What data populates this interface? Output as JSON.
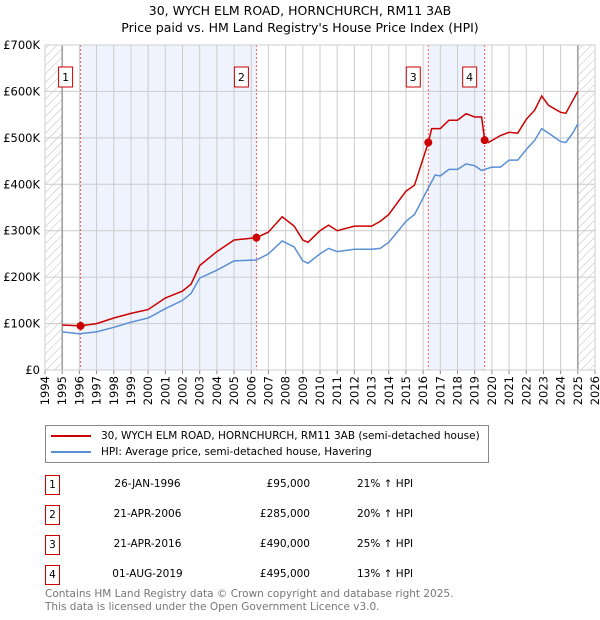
{
  "title": "30, WYCH ELM ROAD, HORNCHURCH, RM11 3AB",
  "subtitle": "Price paid vs. HM Land Registry's House Price Index (HPI)",
  "chart_data": {
    "type": "line",
    "xlim": [
      1994,
      2026
    ],
    "ylim": [
      0,
      700000
    ],
    "x_ticks": [
      "1994",
      "1995",
      "1996",
      "1997",
      "1998",
      "1999",
      "2000",
      "2001",
      "2002",
      "2003",
      "2004",
      "2005",
      "2006",
      "2007",
      "2008",
      "2009",
      "2010",
      "2011",
      "2012",
      "2013",
      "2014",
      "2015",
      "2016",
      "2017",
      "2018",
      "2019",
      "2020",
      "2021",
      "2022",
      "2023",
      "2024",
      "2025",
      "2026"
    ],
    "y_ticks": [
      {
        "v": 0,
        "label": "£0"
      },
      {
        "v": 100000,
        "label": "£100K"
      },
      {
        "v": 200000,
        "label": "£200K"
      },
      {
        "v": 300000,
        "label": "£300K"
      },
      {
        "v": 400000,
        "label": "£400K"
      },
      {
        "v": 500000,
        "label": "£500K"
      },
      {
        "v": 600000,
        "label": "£600K"
      },
      {
        "v": 700000,
        "label": "£700K"
      }
    ],
    "hatched_ranges": [
      [
        1994,
        1995
      ],
      [
        2025,
        2026
      ]
    ],
    "shaded_ranges": [
      [
        1996.07,
        2006.3
      ],
      [
        2016.3,
        2019.58
      ]
    ],
    "series": [
      {
        "name": "30, WYCH ELM ROAD, HORNCHURCH, RM11 3AB (semi-detached house)",
        "color": "#cc0000",
        "x": [
          1995,
          1996.07,
          1997,
          1998,
          1999,
          2000,
          2001,
          2002,
          2002.5,
          2003,
          2004,
          2005,
          2005.5,
          2006.3,
          2007,
          2007.8,
          2008.5,
          2009,
          2009.3,
          2010,
          2010.5,
          2011,
          2012,
          2013,
          2013.5,
          2014,
          2015,
          2015.5,
          2016.3,
          2016.5,
          2017,
          2017.5,
          2018,
          2018.5,
          2019,
          2019.4,
          2019.58,
          2019.8,
          2020.5,
          2021,
          2021.5,
          2022,
          2022.5,
          2022.9,
          2023.3,
          2024,
          2024.3,
          2024.7,
          2025
        ],
        "y": [
          97000,
          95000,
          100000,
          112000,
          122000,
          130000,
          155000,
          170000,
          185000,
          225000,
          255000,
          280000,
          282000,
          285000,
          297000,
          330000,
          310000,
          280000,
          275000,
          300000,
          312000,
          300000,
          310000,
          310000,
          320000,
          335000,
          385000,
          398000,
          490000,
          520000,
          520000,
          538000,
          538000,
          552000,
          545000,
          545000,
          495000,
          490000,
          505000,
          512000,
          510000,
          540000,
          560000,
          590000,
          570000,
          555000,
          553000,
          580000,
          600000
        ]
      },
      {
        "name": "HPI: Average price, semi-detached house, Havering",
        "color": "#5b8fd6",
        "x": [
          1995,
          1996,
          1997,
          1998,
          1999,
          2000,
          2001,
          2002,
          2002.5,
          2003,
          2004,
          2005,
          2006.3,
          2007,
          2007.8,
          2008.5,
          2009,
          2009.3,
          2010,
          2010.5,
          2011,
          2012,
          2013,
          2013.5,
          2014,
          2015,
          2015.5,
          2016.3,
          2016.7,
          2017,
          2017.5,
          2018,
          2018.5,
          2019,
          2019.4,
          2020,
          2020.5,
          2021,
          2021.5,
          2022,
          2022.5,
          2022.9,
          2023.5,
          2024,
          2024.3,
          2024.7,
          2025
        ],
        "y": [
          82000,
          78000,
          82000,
          92000,
          103000,
          112000,
          132000,
          150000,
          165000,
          198000,
          215000,
          235000,
          237000,
          250000,
          278000,
          265000,
          235000,
          230000,
          250000,
          262000,
          255000,
          260000,
          260000,
          262000,
          275000,
          320000,
          335000,
          392000,
          420000,
          418000,
          432000,
          432000,
          444000,
          440000,
          430000,
          437000,
          437000,
          452000,
          452000,
          475000,
          495000,
          520000,
          505000,
          492000,
          490000,
          510000,
          530000
        ]
      }
    ],
    "sales": [
      {
        "label": "1",
        "x": 1996.07,
        "y": 95000,
        "date": "26-JAN-1996",
        "price": "£95,000",
        "hpi": "21% ↑ HPI"
      },
      {
        "label": "2",
        "x": 2006.3,
        "y": 285000,
        "date": "21-APR-2006",
        "price": "£285,000",
        "hpi": "20% ↑ HPI"
      },
      {
        "label": "3",
        "x": 2016.3,
        "y": 490000,
        "date": "21-APR-2016",
        "price": "£490,000",
        "hpi": "25% ↑ HPI"
      },
      {
        "label": "4",
        "x": 2019.58,
        "y": 495000,
        "date": "01-AUG-2019",
        "price": "£495,000",
        "hpi": "13% ↑ HPI"
      }
    ],
    "legend_placement": "bottom"
  },
  "legend": {
    "red": "30, WYCH ELM ROAD, HORNCHURCH, RM11 3AB (semi-detached house)",
    "blue": "HPI: Average price, semi-detached house, Havering"
  },
  "footer": {
    "line1": "Contains HM Land Registry data © Crown copyright and database right 2025.",
    "line2": "This data is licensed under the Open Government Licence v3.0."
  }
}
